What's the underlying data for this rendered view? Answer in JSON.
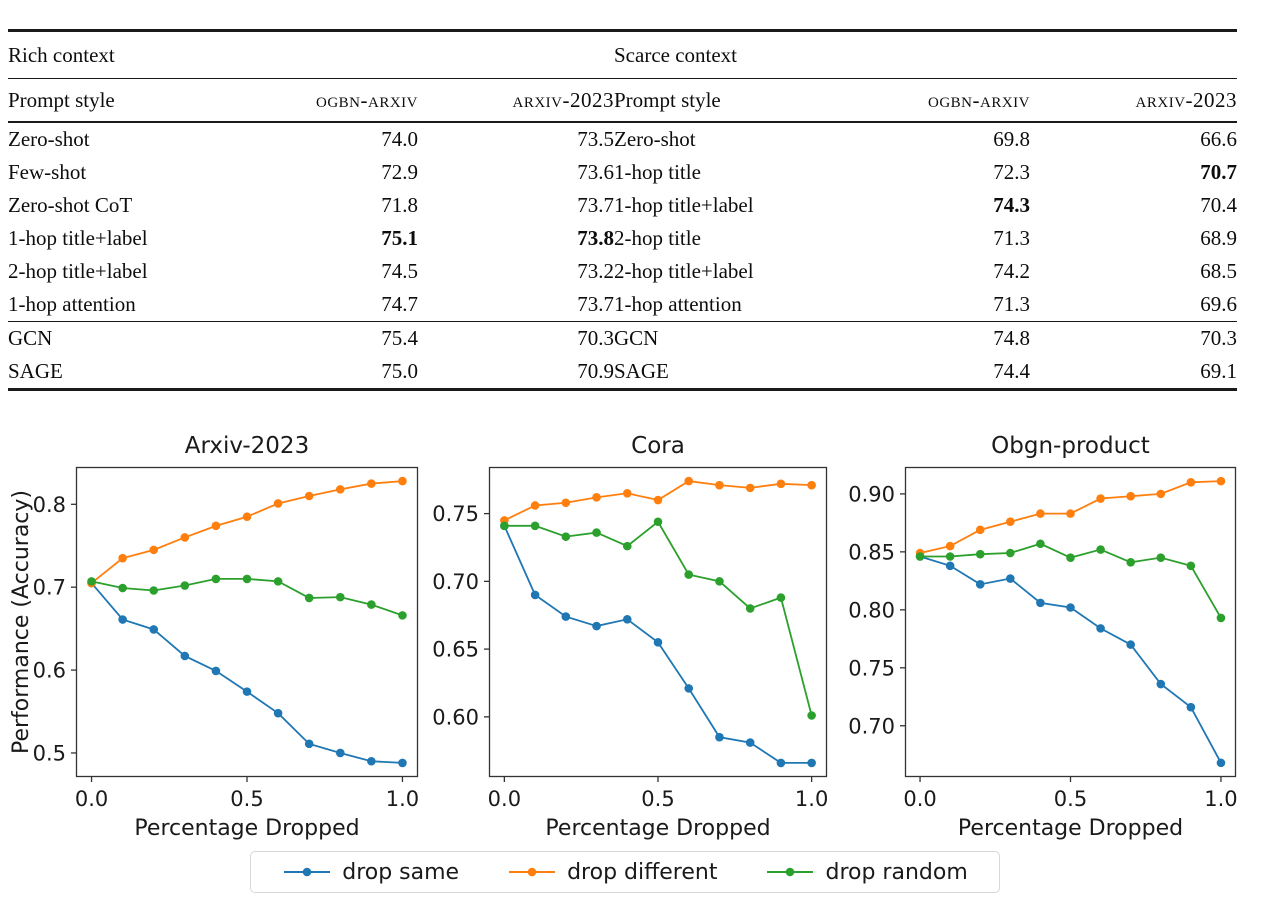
{
  "table": {
    "rich": {
      "title": "Rich context",
      "headers": [
        "Prompt style",
        "ogbn-arxiv",
        "arxiv-2023"
      ],
      "rows": [
        [
          "Zero-shot",
          "74.0",
          "73.5",
          []
        ],
        [
          "Few-shot",
          "72.9",
          "73.6",
          []
        ],
        [
          "Zero-shot CoT",
          "71.8",
          "73.7",
          []
        ],
        [
          "1-hop title+label",
          "75.1",
          "73.8",
          [
            1,
            2
          ]
        ],
        [
          "2-hop title+label",
          "74.5",
          "73.2",
          []
        ],
        [
          "1-hop attention",
          "74.7",
          "73.7",
          []
        ]
      ],
      "footer_rows": [
        [
          "GCN",
          "75.4",
          "70.3",
          []
        ],
        [
          "SAGE",
          "75.0",
          "70.9",
          []
        ]
      ]
    },
    "scarce": {
      "title": "Scarce context",
      "headers": [
        "Prompt style",
        "ogbn-arxiv",
        "arxiv-2023"
      ],
      "rows": [
        [
          "Zero-shot",
          "69.8",
          "66.6",
          []
        ],
        [
          "1-hop title",
          "72.3",
          "70.7",
          [
            2
          ]
        ],
        [
          "1-hop title+label",
          "74.3",
          "70.4",
          [
            1
          ]
        ],
        [
          "2-hop title",
          "71.3",
          "68.9",
          []
        ],
        [
          "2-hop title+label",
          "74.2",
          "68.5",
          []
        ],
        [
          "1-hop attention",
          "71.3",
          "69.6",
          []
        ]
      ],
      "footer_rows": [
        [
          "GCN",
          "74.8",
          "70.3",
          []
        ],
        [
          "SAGE",
          "74.4",
          "69.1",
          []
        ]
      ]
    }
  },
  "chart_data": [
    {
      "type": "line",
      "title": "Arxiv-2023",
      "xlabel": "Percentage Dropped",
      "ylabel": "Performance (Accuracy)",
      "x": [
        0.0,
        0.1,
        0.2,
        0.3,
        0.4,
        0.5,
        0.6,
        0.7,
        0.8,
        0.9,
        1.0
      ],
      "xlim": [
        -0.05,
        1.05
      ],
      "ylim": [
        0.471,
        0.845
      ],
      "xticks": [
        0.0,
        0.5,
        1.0
      ],
      "xtick_labels": [
        "0.0",
        "0.5",
        "1.0"
      ],
      "yticks": [
        0.5,
        0.6,
        0.7,
        0.8
      ],
      "ytick_labels": [
        "0.5",
        "0.6",
        "0.7",
        "0.8"
      ],
      "series": [
        {
          "name": "drop same",
          "color": "#1f77b4",
          "values": [
            0.705,
            0.661,
            0.649,
            0.617,
            0.599,
            0.574,
            0.548,
            0.511,
            0.5,
            0.49,
            0.488
          ]
        },
        {
          "name": "drop different",
          "color": "#ff7f0e",
          "values": [
            0.705,
            0.735,
            0.745,
            0.76,
            0.774,
            0.785,
            0.801,
            0.81,
            0.818,
            0.825,
            0.828
          ]
        },
        {
          "name": "drop random",
          "color": "#2ca02c",
          "values": [
            0.707,
            0.699,
            0.696,
            0.702,
            0.71,
            0.71,
            0.707,
            0.687,
            0.688,
            0.679,
            0.666
          ]
        }
      ]
    },
    {
      "type": "line",
      "title": "Cora",
      "xlabel": "Percentage Dropped",
      "ylabel": "",
      "x": [
        0.0,
        0.1,
        0.2,
        0.3,
        0.4,
        0.5,
        0.6,
        0.7,
        0.8,
        0.9,
        1.0
      ],
      "xlim": [
        -0.05,
        1.05
      ],
      "ylim": [
        0.5556,
        0.7844
      ],
      "xticks": [
        0.0,
        0.5,
        1.0
      ],
      "xtick_labels": [
        "0.0",
        "0.5",
        "1.0"
      ],
      "yticks": [
        0.6,
        0.65,
        0.7,
        0.75
      ],
      "ytick_labels": [
        "0.60",
        "0.65",
        "0.70",
        "0.75"
      ],
      "series": [
        {
          "name": "drop same",
          "color": "#1f77b4",
          "values": [
            0.741,
            0.69,
            0.674,
            0.667,
            0.672,
            0.655,
            0.621,
            0.585,
            0.581,
            0.566,
            0.566
          ]
        },
        {
          "name": "drop different",
          "color": "#ff7f0e",
          "values": [
            0.745,
            0.756,
            0.758,
            0.762,
            0.765,
            0.76,
            0.774,
            0.771,
            0.769,
            0.772,
            0.771
          ]
        },
        {
          "name": "drop random",
          "color": "#2ca02c",
          "values": [
            0.741,
            0.741,
            0.733,
            0.736,
            0.726,
            0.744,
            0.705,
            0.7,
            0.68,
            0.688,
            0.601
          ]
        }
      ]
    },
    {
      "type": "line",
      "title": "Obgn-product",
      "xlabel": "Percentage Dropped",
      "ylabel": "",
      "x": [
        0.0,
        0.1,
        0.2,
        0.3,
        0.4,
        0.5,
        0.6,
        0.7,
        0.8,
        0.9,
        1.0
      ],
      "xlim": [
        -0.05,
        1.05
      ],
      "ylim": [
        0.6558,
        0.9232
      ],
      "xticks": [
        0.0,
        0.5,
        1.0
      ],
      "xtick_labels": [
        "0.0",
        "0.5",
        "1.0"
      ],
      "yticks": [
        0.7,
        0.75,
        0.8,
        0.85,
        0.9
      ],
      "ytick_labels": [
        "0.70",
        "0.75",
        "0.80",
        "0.85",
        "0.90"
      ],
      "series": [
        {
          "name": "drop same",
          "color": "#1f77b4",
          "values": [
            0.846,
            0.838,
            0.822,
            0.827,
            0.806,
            0.802,
            0.784,
            0.77,
            0.736,
            0.716,
            0.668
          ]
        },
        {
          "name": "drop different",
          "color": "#ff7f0e",
          "values": [
            0.849,
            0.855,
            0.869,
            0.876,
            0.883,
            0.883,
            0.896,
            0.898,
            0.9,
            0.91,
            0.911
          ]
        },
        {
          "name": "drop random",
          "color": "#2ca02c",
          "values": [
            0.846,
            0.846,
            0.848,
            0.849,
            0.857,
            0.845,
            0.852,
            0.841,
            0.845,
            0.838,
            0.793
          ]
        }
      ]
    }
  ],
  "legend": {
    "items": [
      {
        "label": "drop same",
        "color": "#1f77b4"
      },
      {
        "label": "drop different",
        "color": "#ff7f0e"
      },
      {
        "label": "drop random",
        "color": "#2ca02c"
      }
    ]
  }
}
